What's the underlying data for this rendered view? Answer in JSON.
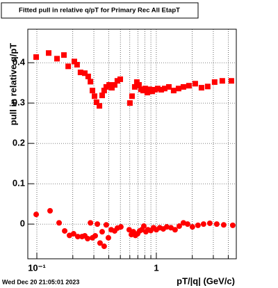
{
  "chart_data": {
    "type": "scatter",
    "title": "Fitted pull in relative q/pT for Primary Rec All EtapT",
    "x_label": "pT/|q| (GeV/c)",
    "y_label": "pull in relative q/pT",
    "log_x": true,
    "grid": true,
    "xlim": [
      0.084,
      4.67
    ],
    "ylim": [
      -0.086,
      0.483
    ],
    "xticks": [
      {
        "value": 0.1,
        "label": "10⁻¹"
      },
      1
    ],
    "xminorticks": [
      0.2,
      0.3,
      0.4,
      0.5,
      0.6,
      0.7,
      0.8,
      0.9,
      2,
      3,
      4
    ],
    "yticks": [
      0,
      0.1,
      0.2,
      0.3,
      0.4
    ],
    "series": [
      {
        "marker": "square",
        "color": "#ff0000",
        "x": [
          0.0987,
          0.1256,
          0.1475,
          0.1685,
          0.183,
          0.206,
          0.217,
          0.232,
          0.252,
          0.269,
          0.281,
          0.292,
          0.304,
          0.316,
          0.334,
          0.352,
          0.366,
          0.381,
          0.403,
          0.425,
          0.448,
          0.472,
          0.499,
          0.601,
          0.626,
          0.66,
          0.687,
          0.716,
          0.745,
          0.776,
          0.807,
          0.84,
          0.875,
          0.923,
          0.974,
          1.027,
          1.098,
          1.174,
          1.273,
          1.397,
          1.535,
          1.686,
          1.876,
          2.117,
          2.387,
          2.692,
          3.076,
          3.566,
          4.246
        ],
        "values": [
          0.414,
          0.424,
          0.41,
          0.419,
          0.391,
          0.403,
          0.395,
          0.376,
          0.374,
          0.366,
          0.353,
          0.331,
          0.317,
          0.302,
          0.293,
          0.319,
          0.331,
          0.34,
          0.345,
          0.338,
          0.345,
          0.355,
          0.359,
          0.3,
          0.317,
          0.34,
          0.352,
          0.345,
          0.334,
          0.331,
          0.336,
          0.326,
          0.334,
          0.329,
          0.333,
          0.336,
          0.333,
          0.336,
          0.34,
          0.331,
          0.336,
          0.34,
          0.343,
          0.348,
          0.338,
          0.341,
          0.352,
          0.355,
          0.355
        ]
      },
      {
        "marker": "circle",
        "color": "#ff0000",
        "x": [
          0.0987,
          0.129,
          0.1535,
          0.171,
          0.1876,
          0.203,
          0.22,
          0.239,
          0.252,
          0.266,
          0.281,
          0.292,
          0.308,
          0.321,
          0.338,
          0.352,
          0.366,
          0.381,
          0.397,
          0.419,
          0.448,
          0.472,
          0.505,
          0.593,
          0.618,
          0.643,
          0.669,
          0.697,
          0.725,
          0.755,
          0.786,
          0.818,
          0.851,
          0.898,
          0.948,
          1,
          1.069,
          1.143,
          1.222,
          1.325,
          1.435,
          1.556,
          1.686,
          1.826,
          2.005,
          2.232,
          2.485,
          2.804,
          3.205,
          3.664,
          4.363
        ],
        "values": [
          0.024,
          0.033,
          0.003,
          -0.017,
          -0.028,
          -0.024,
          -0.031,
          -0.031,
          -0.029,
          -0.036,
          0.003,
          -0.034,
          -0.029,
          0,
          -0.047,
          -0.019,
          -0.055,
          -0.002,
          -0.034,
          -0.014,
          -0.017,
          -0.01,
          -0.007,
          -0.014,
          -0.026,
          -0.019,
          -0.028,
          -0.024,
          -0.017,
          -0.014,
          -0.005,
          -0.019,
          -0.014,
          -0.016,
          -0.009,
          -0.014,
          -0.009,
          -0.012,
          -0.007,
          -0.009,
          -0.014,
          -0.005,
          0.003,
          0,
          -0.007,
          -0.003,
          0,
          0.002,
          0,
          -0.002,
          -0.003
        ]
      }
    ]
  },
  "footer": "Wed Dec 20 21:05:01 2023"
}
